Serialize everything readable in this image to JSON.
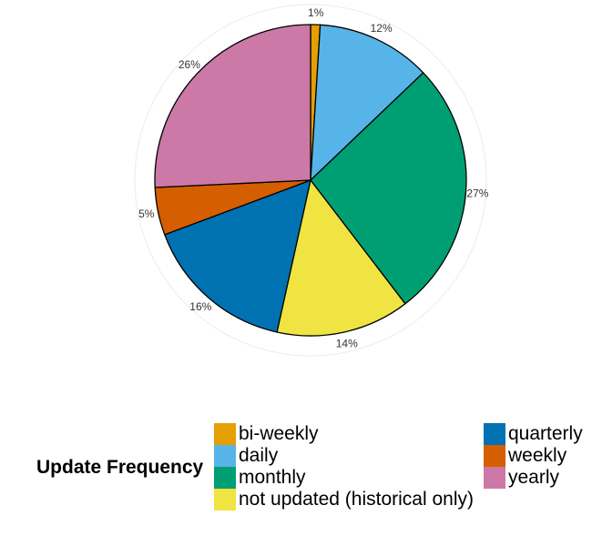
{
  "chart_data": {
    "type": "pie",
    "slices": [
      {
        "category": "bi-weekly",
        "value": 1,
        "label": "1%",
        "color": "#E69F00"
      },
      {
        "category": "daily",
        "value": 12,
        "label": "12%",
        "color": "#56B4E9"
      },
      {
        "category": "monthly",
        "value": 27,
        "label": "27%",
        "color": "#009E73"
      },
      {
        "category": "not updated (historical only)",
        "value": 14,
        "label": "14%",
        "color": "#F0E442"
      },
      {
        "category": "quarterly",
        "value": 16,
        "label": "16%",
        "color": "#0072B2"
      },
      {
        "category": "weekly",
        "value": 5,
        "label": "5%",
        "color": "#D55E00"
      },
      {
        "category": "yearly",
        "value": 26,
        "label": "26%",
        "color": "#CC79A7"
      }
    ],
    "legend": {
      "title": "Update Frequency",
      "items": [
        {
          "label": "bi-weekly",
          "color": "#E69F00"
        },
        {
          "label": "daily",
          "color": "#56B4E9"
        },
        {
          "label": "monthly",
          "color": "#009E73"
        },
        {
          "label": "not updated (historical only)",
          "color": "#F0E442"
        },
        {
          "label": "quarterly",
          "color": "#0072B2"
        },
        {
          "label": "weekly",
          "color": "#D55E00"
        },
        {
          "label": "yearly",
          "color": "#CC79A7"
        }
      ],
      "placement": "bottom"
    },
    "start_angle": "12 o'clock",
    "direction": "clockwise",
    "grid": true
  }
}
